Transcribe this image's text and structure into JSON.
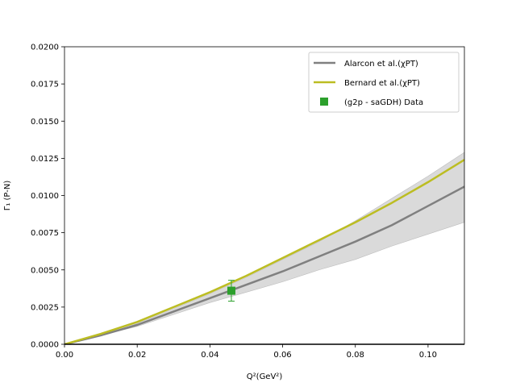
{
  "chart_data": {
    "type": "line",
    "title": "",
    "xlabel": "Q²(GeV²)",
    "ylabel": "Γ₁ (P-N)",
    "xlim": [
      0.0,
      0.11
    ],
    "ylim": [
      0.0,
      0.02
    ],
    "x_ticks": [
      0.0,
      0.02,
      0.04,
      0.06,
      0.08,
      0.1
    ],
    "x_tick_labels": [
      "0.00",
      "0.02",
      "0.04",
      "0.06",
      "0.08",
      "0.10"
    ],
    "y_ticks": [
      0.0,
      0.0025,
      0.005,
      0.0075,
      0.01,
      0.0125,
      0.015,
      0.0175,
      0.02
    ],
    "y_tick_labels": [
      "0.0000",
      "0.0025",
      "0.0050",
      "0.0075",
      "0.0100",
      "0.0125",
      "0.0150",
      "0.0175",
      "0.0200"
    ],
    "grid": false,
    "legend_position": "top-right",
    "series": [
      {
        "name": "Alarcon et al.(χPT)",
        "kind": "line",
        "color": "#808080",
        "x": [
          0.0,
          0.01,
          0.02,
          0.03,
          0.04,
          0.05,
          0.06,
          0.07,
          0.08,
          0.09,
          0.1,
          0.11
        ],
        "y": [
          0.0,
          0.0006,
          0.0013,
          0.0022,
          0.0031,
          0.004,
          0.0049,
          0.0059,
          0.0069,
          0.008,
          0.0093,
          0.0106
        ],
        "band": {
          "color": "#d3d3d3",
          "lower": [
            0.0,
            0.0006,
            0.0012,
            0.002,
            0.0028,
            0.0035,
            0.0042,
            0.005,
            0.0057,
            0.0066,
            0.0074,
            0.0082
          ],
          "upper": [
            0.0,
            0.0006,
            0.0014,
            0.0024,
            0.0034,
            0.0045,
            0.0057,
            0.0069,
            0.0083,
            0.0098,
            0.0113,
            0.0129
          ]
        }
      },
      {
        "name": "Bernard et al.(χPT)",
        "kind": "line",
        "color": "#bcbd22",
        "x": [
          0.0,
          0.01,
          0.02,
          0.03,
          0.04,
          0.05,
          0.06,
          0.07,
          0.08,
          0.09,
          0.1,
          0.11
        ],
        "y": [
          0.0,
          0.0007,
          0.0015,
          0.0025,
          0.0035,
          0.0046,
          0.0058,
          0.007,
          0.0082,
          0.0095,
          0.0109,
          0.0124
        ]
      },
      {
        "name": "(g2p - saGDH) Data",
        "kind": "point",
        "color": "#2ca02c",
        "x": [
          0.0459
        ],
        "y": [
          0.0036
        ],
        "err": [
          0.0007
        ]
      }
    ]
  }
}
